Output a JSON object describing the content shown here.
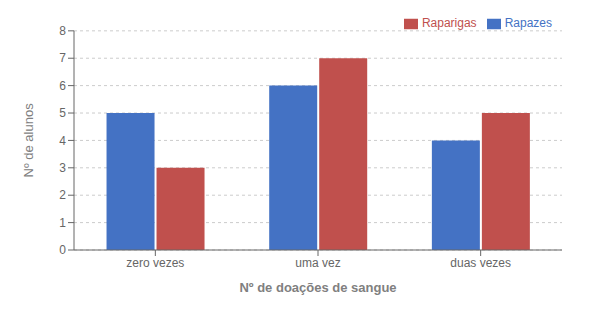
{
  "chart_data": {
    "type": "bar",
    "categories": [
      "zero vezes",
      "uma vez",
      "duas vezes"
    ],
    "series": [
      {
        "name": "Rapazes",
        "color": "#4472C4",
        "values": [
          5,
          6,
          4
        ]
      },
      {
        "name": "Raparigas",
        "color": "#C0504D",
        "values": [
          3,
          7,
          5
        ]
      }
    ],
    "xlabel": "Nº de doações de sangue",
    "ylabel": "Nº de alunos",
    "ylim": [
      0,
      8
    ],
    "yticks": [
      0,
      1,
      2,
      3,
      4,
      5,
      6,
      7,
      8
    ],
    "grid": true,
    "legend": "upper right"
  }
}
